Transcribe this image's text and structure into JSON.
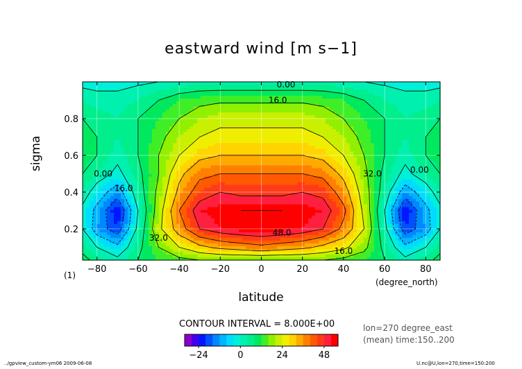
{
  "chart_data": {
    "type": "heatmap",
    "title": "eastward wind [m s−1]",
    "xlabel": "latitude",
    "ylabel": "sigma",
    "x_units_label": "(degree_north)",
    "panel_label": "(1)",
    "xlim": [
      -87,
      87
    ],
    "ylim": [
      1.0,
      0.03
    ],
    "x_ticks": [
      -80,
      -60,
      -40,
      -20,
      0,
      20,
      40,
      60,
      80
    ],
    "y_ticks": [
      0.2,
      0.4,
      0.6,
      0.8
    ],
    "x_tick_labels": [
      "−80",
      "−60",
      "−40",
      "−20",
      "0",
      "20",
      "40",
      "60",
      "80"
    ],
    "y_tick_labels": [
      "0.2",
      "0.4",
      "0.6",
      "0.8"
    ],
    "x": [
      -87,
      -80,
      -70,
      -60,
      -50,
      -40,
      -30,
      -20,
      -10,
      0,
      10,
      20,
      30,
      40,
      50,
      60,
      70,
      80,
      87
    ],
    "y": [
      0.03,
      0.1,
      0.2,
      0.3,
      0.4,
      0.5,
      0.6,
      0.7,
      0.8,
      0.9,
      1.0
    ],
    "z": [
      [
        10,
        6,
        2,
        8,
        12,
        14,
        16,
        16,
        16,
        16,
        16,
        16,
        16,
        14,
        12,
        8,
        2,
        6,
        10
      ],
      [
        6,
        0,
        -6,
        6,
        16,
        24,
        30,
        34,
        36,
        38,
        36,
        34,
        30,
        26,
        18,
        6,
        -6,
        0,
        6
      ],
      [
        0,
        -12,
        -20,
        2,
        22,
        36,
        48,
        52,
        54,
        55,
        54,
        52,
        48,
        38,
        24,
        2,
        -20,
        -12,
        0
      ],
      [
        -2,
        -10,
        -24,
        0,
        20,
        40,
        52,
        54,
        56,
        56,
        56,
        54,
        52,
        42,
        22,
        0,
        -24,
        -10,
        -2
      ],
      [
        4,
        -4,
        -12,
        4,
        18,
        34,
        44,
        48,
        46,
        46,
        46,
        48,
        46,
        36,
        20,
        4,
        -12,
        -4,
        4
      ],
      [
        8,
        4,
        -2,
        6,
        16,
        30,
        38,
        40,
        40,
        40,
        40,
        40,
        38,
        30,
        18,
        6,
        -2,
        4,
        8
      ],
      [
        10,
        8,
        2,
        8,
        16,
        24,
        30,
        32,
        32,
        32,
        32,
        32,
        30,
        24,
        16,
        8,
        2,
        8,
        10
      ],
      [
        10,
        8,
        4,
        8,
        14,
        20,
        24,
        26,
        26,
        26,
        26,
        26,
        24,
        20,
        14,
        8,
        4,
        8,
        10
      ],
      [
        8,
        6,
        4,
        8,
        12,
        16,
        20,
        22,
        22,
        22,
        22,
        22,
        20,
        16,
        12,
        8,
        4,
        6,
        8
      ],
      [
        4,
        2,
        2,
        4,
        8,
        12,
        14,
        15,
        15,
        15,
        15,
        15,
        14,
        12,
        8,
        4,
        2,
        2,
        4
      ],
      [
        -2,
        -2,
        -2,
        -1,
        0,
        1,
        2,
        2,
        2,
        2,
        2,
        2,
        2,
        1,
        0,
        -1,
        -2,
        -2,
        -2
      ]
    ],
    "contour_levels": [
      -32,
      -24,
      -16,
      -8,
      0,
      8,
      16,
      24,
      32,
      40,
      48,
      56
    ],
    "contour_labels": [
      {
        "text": "16.0",
        "x": 40,
        "y": 0.08
      },
      {
        "text": "32.0",
        "x": -50,
        "y": 0.15
      },
      {
        "text": "48.0",
        "x": 10,
        "y": 0.18
      },
      {
        "text": "16.0",
        "x": -67,
        "y": 0.42
      },
      {
        "text": "0.00",
        "x": -77,
        "y": 0.5
      },
      {
        "text": "32.0",
        "x": 54,
        "y": 0.5
      },
      {
        "text": "0.00",
        "x": 77,
        "y": 0.52
      },
      {
        "text": "16.0",
        "x": 8,
        "y": 0.9
      },
      {
        "text": "0.00",
        "x": 12,
        "y": 0.985
      }
    ],
    "colorbar": {
      "bounds": [
        -32,
        -28,
        -24,
        -20,
        -16,
        -12,
        -8,
        -4,
        0,
        4,
        8,
        12,
        16,
        20,
        24,
        28,
        32,
        36,
        40,
        44,
        48,
        52,
        56
      ],
      "colors": [
        "#8a00c8",
        "#4400e8",
        "#0018ff",
        "#0050ff",
        "#0088ff",
        "#00b4ff",
        "#00dcff",
        "#00f0d8",
        "#00f0b0",
        "#00ee8c",
        "#00e85e",
        "#40ee28",
        "#90f000",
        "#c8f000",
        "#f0ee00",
        "#ffd400",
        "#ffaa00",
        "#ff8000",
        "#ff5a00",
        "#ff3a18",
        "#ff2040",
        "#ff0000"
      ],
      "tick_values": [
        -24,
        0,
        24,
        48
      ],
      "tick_labels": [
        "−24",
        "0",
        "24",
        "48"
      ]
    },
    "contour_interval_text": "CONTOUR INTERVAL = 8.000E+00",
    "info_lines": [
      "lon=270 degree_east",
      "(mean) time:150..200"
    ],
    "footer_left": "../gpview_custom-ym06  2009-06-08",
    "footer_right": "U.nc@U,lon=270,time=150:200",
    "grid": true
  }
}
